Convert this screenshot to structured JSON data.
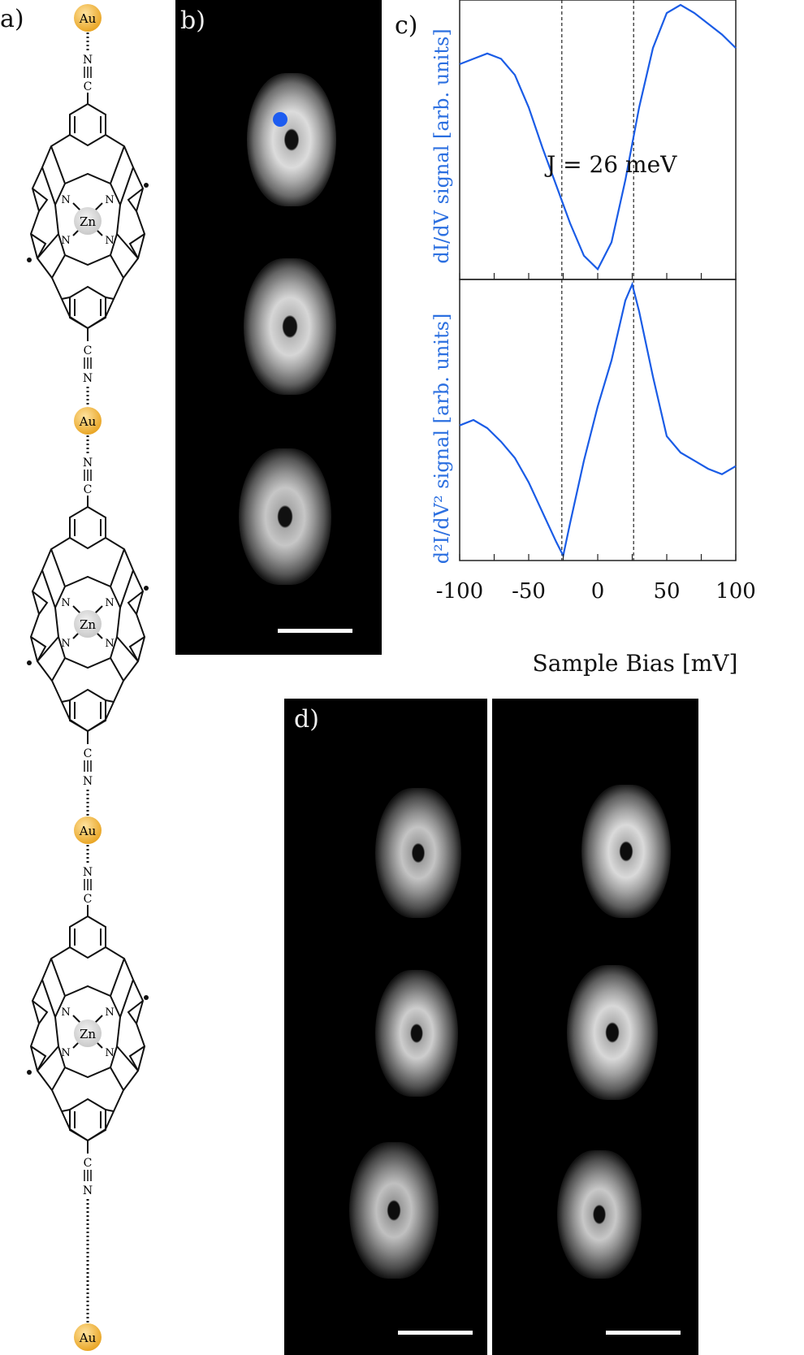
{
  "panels": {
    "a": "a)",
    "b": "b)",
    "c": "c)",
    "d": "d)"
  },
  "structure": {
    "atoms": {
      "gold": "Au",
      "metal": "Zn",
      "nitrogen": "N",
      "carbon": "C"
    },
    "gold_color": "#f2b63a",
    "units": 3
  },
  "colors": {
    "trace": "#1a5ce6",
    "axis_blue": "#2b6fe0",
    "marker": "#1d5cf0"
  },
  "chart_data": {
    "type": "line",
    "xlabel": "Sample Bias [mV]",
    "xlim": [
      -100,
      100
    ],
    "xticks": [
      "-100",
      "-50",
      "0",
      "50",
      "100"
    ],
    "annotation": "J = 26 meV",
    "vlines": [
      -26,
      26
    ],
    "series": [
      {
        "ylabel": "dI/dV signal [arb. units]",
        "x": [
          -100,
          -90,
          -80,
          -70,
          -60,
          -50,
          -40,
          -30,
          -20,
          -10,
          0,
          10,
          20,
          30,
          40,
          50,
          60,
          70,
          80,
          90,
          100
        ],
        "y": [
          0.78,
          0.8,
          0.82,
          0.8,
          0.74,
          0.62,
          0.47,
          0.33,
          0.19,
          0.07,
          0.02,
          0.12,
          0.35,
          0.62,
          0.84,
          0.97,
          1.0,
          0.97,
          0.93,
          0.89,
          0.84
        ]
      },
      {
        "ylabel": "d²I/dV² signal [arb. units]",
        "x": [
          -100,
          -90,
          -80,
          -70,
          -60,
          -50,
          -40,
          -30,
          -25,
          -20,
          -10,
          0,
          10,
          20,
          25,
          30,
          40,
          50,
          60,
          70,
          80,
          90,
          100
        ],
        "y": [
          0.48,
          0.5,
          0.47,
          0.42,
          0.36,
          0.27,
          0.16,
          0.05,
          0.0,
          0.12,
          0.35,
          0.55,
          0.72,
          0.94,
          1.0,
          0.9,
          0.66,
          0.44,
          0.38,
          0.35,
          0.32,
          0.3,
          0.33
        ]
      }
    ]
  }
}
